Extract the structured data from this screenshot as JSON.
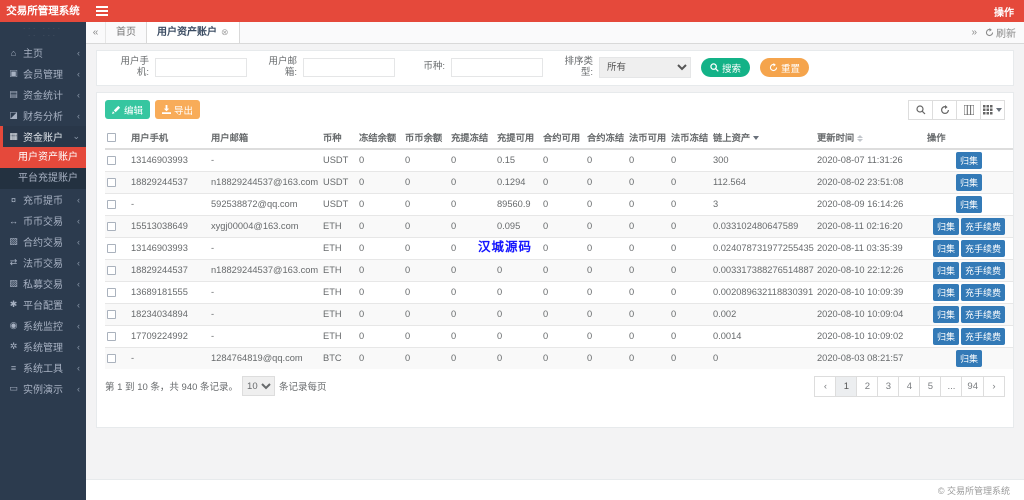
{
  "app": {
    "title": "交易所管理系统",
    "topbar_right_label": "操作",
    "footer_copyright": "© 交易所管理系统"
  },
  "tabs": {
    "home_label": "首页",
    "active_label": "用户资产账户",
    "refresh_label": "刷新"
  },
  "sidebar": {
    "items": [
      {
        "label": "主页",
        "icon": "home-icon",
        "state": "collapsed"
      },
      {
        "label": "会员管理",
        "icon": "members-icon",
        "state": "collapsed"
      },
      {
        "label": "资金统计",
        "icon": "funds-stats-icon",
        "state": "collapsed"
      },
      {
        "label": "财务分析",
        "icon": "finance-analysis-icon",
        "state": "collapsed"
      },
      {
        "label": "资金账户",
        "icon": "funds-account-icon",
        "state": "expanded",
        "active": true,
        "submenu": [
          {
            "label": "用户资产账户",
            "active": true
          },
          {
            "label": "平台充提账户",
            "active": false
          }
        ]
      },
      {
        "label": "充币提币",
        "icon": "deposit-withdraw-icon",
        "state": "collapsed"
      },
      {
        "label": "币币交易",
        "icon": "spot-trade-icon",
        "state": "collapsed"
      },
      {
        "label": "合约交易",
        "icon": "contract-trade-icon",
        "state": "collapsed"
      },
      {
        "label": "法币交易",
        "icon": "fiat-trade-icon",
        "state": "collapsed"
      },
      {
        "label": "私募交易",
        "icon": "private-trade-icon",
        "state": "collapsed"
      },
      {
        "label": "平台配置",
        "icon": "platform-config-icon",
        "state": "collapsed"
      },
      {
        "label": "系统监控",
        "icon": "system-monitor-icon",
        "state": "collapsed"
      },
      {
        "label": "系统管理",
        "icon": "system-manage-icon",
        "state": "collapsed"
      },
      {
        "label": "系统工具",
        "icon": "system-tools-icon",
        "state": "collapsed"
      },
      {
        "label": "实例演示",
        "icon": "demo-icon",
        "state": "collapsed"
      }
    ]
  },
  "search": {
    "phone_label": "用户手机:",
    "email_label": "用户邮箱:",
    "coin_label": "币种:",
    "sort_label": "排序类型:",
    "sort_selected": "所有",
    "search_label": "搜索",
    "reset_label": "重置"
  },
  "toolbar": {
    "edit_label": "编辑",
    "export_label": "导出"
  },
  "table": {
    "headers": [
      {
        "label": "用户手机",
        "sort": "none"
      },
      {
        "label": "用户邮箱",
        "sort": "none"
      },
      {
        "label": "币种",
        "sort": "none"
      },
      {
        "label": "冻结余额",
        "sort": "none"
      },
      {
        "label": "币币余额",
        "sort": "none"
      },
      {
        "label": "充提冻结",
        "sort": "none"
      },
      {
        "label": "充提可用",
        "sort": "none"
      },
      {
        "label": "合约可用",
        "sort": "none"
      },
      {
        "label": "合约冻结",
        "sort": "none"
      },
      {
        "label": "法币可用",
        "sort": "none"
      },
      {
        "label": "法币冻结",
        "sort": "none"
      },
      {
        "label": "链上资产",
        "sort": "desc"
      },
      {
        "label": "更新时间",
        "sort": "both"
      },
      {
        "label": "操作",
        "sort": "none"
      }
    ],
    "rows": [
      {
        "cells": [
          "13146903993",
          "-",
          "USDT",
          "0",
          "0",
          "0",
          "0.15",
          "0",
          "0",
          "0",
          "0",
          "300",
          "2020-08-07 11:31:26"
        ],
        "actions": [
          "归集"
        ]
      },
      {
        "cells": [
          "18829244537",
          "n18829244537@163.com",
          "USDT",
          "0",
          "0",
          "0",
          "0.1294",
          "0",
          "0",
          "0",
          "0",
          "112.564",
          "2020-08-02 23:51:08"
        ],
        "actions": [
          "归集"
        ]
      },
      {
        "cells": [
          "-",
          "592538872@qq.com",
          "USDT",
          "0",
          "0",
          "0",
          "89560.9",
          "0",
          "0",
          "0",
          "0",
          "3",
          "2020-08-09 16:14:26"
        ],
        "actions": [
          "归集"
        ]
      },
      {
        "cells": [
          "15513038649",
          "xygj00004@163.com",
          "ETH",
          "0",
          "0",
          "0",
          "0.095",
          "0",
          "0",
          "0",
          "0",
          "0.033102480647589",
          "2020-08-11 02:16:20"
        ],
        "actions": [
          "归集",
          "充手续费"
        ]
      },
      {
        "cells": [
          "13146903993",
          "-",
          "ETH",
          "0",
          "0",
          "0",
          "0",
          "0",
          "0",
          "0",
          "0",
          "0.024078731977255435",
          "2020-08-11 03:35:39"
        ],
        "actions": [
          "归集",
          "充手续费"
        ]
      },
      {
        "cells": [
          "18829244537",
          "n18829244537@163.com",
          "ETH",
          "0",
          "0",
          "0",
          "0",
          "0",
          "0",
          "0",
          "0",
          "0.003317388276514887",
          "2020-08-10 22:12:26"
        ],
        "actions": [
          "归集",
          "充手续费"
        ]
      },
      {
        "cells": [
          "13689181555",
          "-",
          "ETH",
          "0",
          "0",
          "0",
          "0",
          "0",
          "0",
          "0",
          "0",
          "0.002089632118830391",
          "2020-08-10 10:09:39"
        ],
        "actions": [
          "归集",
          "充手续费"
        ]
      },
      {
        "cells": [
          "18234034894",
          "-",
          "ETH",
          "0",
          "0",
          "0",
          "0",
          "0",
          "0",
          "0",
          "0",
          "0.002",
          "2020-08-10 10:09:04"
        ],
        "actions": [
          "归集",
          "充手续费"
        ]
      },
      {
        "cells": [
          "17709224992",
          "-",
          "ETH",
          "0",
          "0",
          "0",
          "0",
          "0",
          "0",
          "0",
          "0",
          "0.0014",
          "2020-08-10 10:09:02"
        ],
        "actions": [
          "归集",
          "充手续费"
        ]
      },
      {
        "cells": [
          "-",
          "1284764819@qq.com",
          "BTC",
          "0",
          "0",
          "0",
          "0",
          "0",
          "0",
          "0",
          "0",
          "0",
          "2020-08-03 08:21:57"
        ],
        "actions": [
          "归集"
        ]
      }
    ]
  },
  "pagination": {
    "summary": "第 1 到 10 条，共 940 条记录。",
    "page_size": "10",
    "per_page_label": "条记录每页",
    "prev_label": "‹",
    "next_label": "›",
    "pages": [
      "1",
      "2",
      "3",
      "4",
      "5",
      "...",
      "94"
    ],
    "active_page": "1"
  },
  "watermark_text": "汉城源码",
  "colors": {
    "accent_red": "#e5493b",
    "sidebar_bg": "#2c3b4e",
    "primary_blue": "#337ab7",
    "search_green": "#13b287",
    "reset_orange": "#f5a44c",
    "edit_teal": "#36c6a0",
    "export_orange": "#f8ac59",
    "watermark_blue": "#1616ff"
  }
}
